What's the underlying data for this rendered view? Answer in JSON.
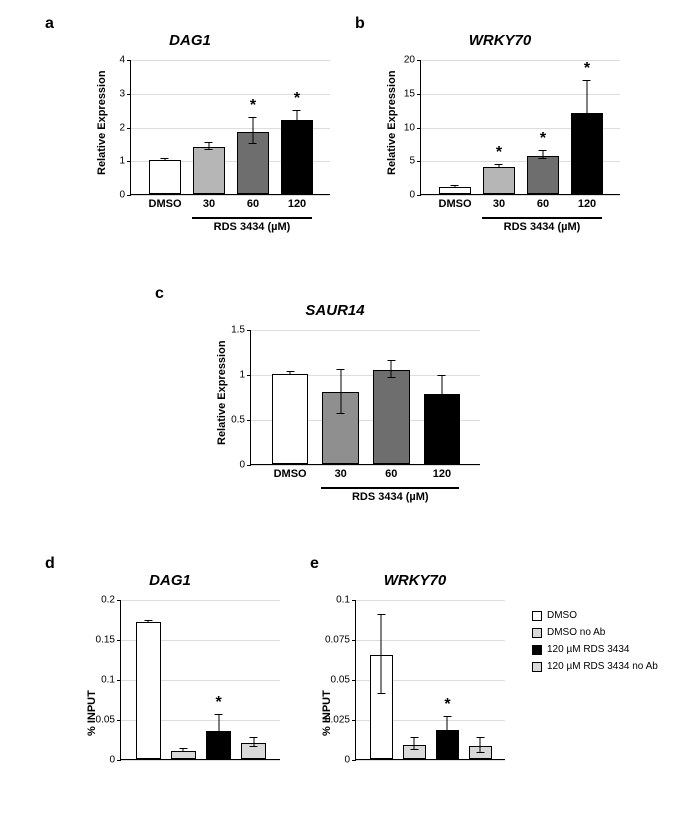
{
  "panels": {
    "a": {
      "label": "a",
      "title": "DAG1"
    },
    "b": {
      "label": "b",
      "title": "WRKY70"
    },
    "c": {
      "label": "c",
      "title": "SAUR14"
    },
    "d": {
      "label": "d",
      "title": "DAG1"
    },
    "e": {
      "label": "e",
      "title": "WRKY70"
    }
  },
  "ylab_expr": "Relative Expression",
  "ylab_input": "% INPUT",
  "x_categories_expr": [
    "DMSO",
    "30",
    "60",
    "120"
  ],
  "x_cond_label": "RDS 3434 (µM)",
  "chart_a": {
    "type": "bar",
    "ymax": 4,
    "yticks": [
      0,
      1,
      2,
      3,
      4
    ],
    "values": [
      1.0,
      1.4,
      1.85,
      2.2
    ],
    "err_up": [
      0.05,
      0.12,
      0.4,
      0.25
    ],
    "err_dn": [
      0.05,
      0.12,
      0.4,
      0.25
    ],
    "sig": [
      false,
      false,
      true,
      true
    ],
    "colors": [
      "#ffffff",
      "#b6b6b6",
      "#6e6e6e",
      "#000000"
    ]
  },
  "chart_b": {
    "type": "bar",
    "ymax": 20,
    "yticks": [
      0,
      5,
      10,
      15,
      20
    ],
    "values": [
      1.0,
      4.0,
      5.7,
      12.0
    ],
    "err_up": [
      0.2,
      0.3,
      0.6,
      4.8
    ],
    "err_dn": [
      0.2,
      0.3,
      0.6,
      4.8
    ],
    "sig": [
      false,
      true,
      true,
      true
    ],
    "colors": [
      "#ffffff",
      "#b6b6b6",
      "#6e6e6e",
      "#000000"
    ]
  },
  "chart_c": {
    "type": "bar",
    "ymax": 1.5,
    "yticks": [
      0,
      0.5,
      1,
      1.5
    ],
    "values": [
      1.0,
      0.8,
      1.05,
      0.78
    ],
    "err_up": [
      0.02,
      0.25,
      0.1,
      0.2
    ],
    "err_dn": [
      0.02,
      0.25,
      0.1,
      0.2
    ],
    "sig": [
      false,
      false,
      false,
      false
    ],
    "colors": [
      "#ffffff",
      "#8f8f8f",
      "#6e6e6e",
      "#000000"
    ]
  },
  "chart_d": {
    "type": "bar",
    "ymax": 0.2,
    "yticks": [
      0,
      0.05,
      0.1,
      0.15,
      0.2
    ],
    "values": [
      0.171,
      0.01,
      0.035,
      0.02
    ],
    "err_up": [
      0.002,
      0.003,
      0.02,
      0.006
    ],
    "err_dn": [
      0.002,
      0.003,
      0.02,
      0.006
    ],
    "sig": [
      false,
      false,
      true,
      false
    ],
    "colors": [
      "#ffffff",
      "#d9d9d9",
      "#000000",
      "#d9d9d9"
    ]
  },
  "chart_e": {
    "type": "bar",
    "ymax": 0.1,
    "yticks": [
      0,
      0.025,
      0.05,
      0.075,
      0.1
    ],
    "values": [
      0.065,
      0.009,
      0.018,
      0.008
    ],
    "err_up": [
      0.025,
      0.004,
      0.008,
      0.005
    ],
    "err_dn": [
      0.025,
      0.004,
      0.008,
      0.005
    ],
    "sig": [
      false,
      false,
      true,
      false
    ],
    "colors": [
      "#ffffff",
      "#d9d9d9",
      "#000000",
      "#d9d9d9"
    ]
  },
  "legend_de": [
    {
      "label": "DMSO",
      "color": "#ffffff"
    },
    {
      "label": "DMSO no Ab",
      "color": "#d9d9d9"
    },
    {
      "label": "120 µM RDS 3434",
      "color": "#000000"
    },
    {
      "label": "120 µM RDS 3434 no Ab",
      "color": "#d9d9d9"
    }
  ],
  "fonts": {
    "title_pt": 15,
    "label_pt": 11,
    "tick_pt": 10
  }
}
